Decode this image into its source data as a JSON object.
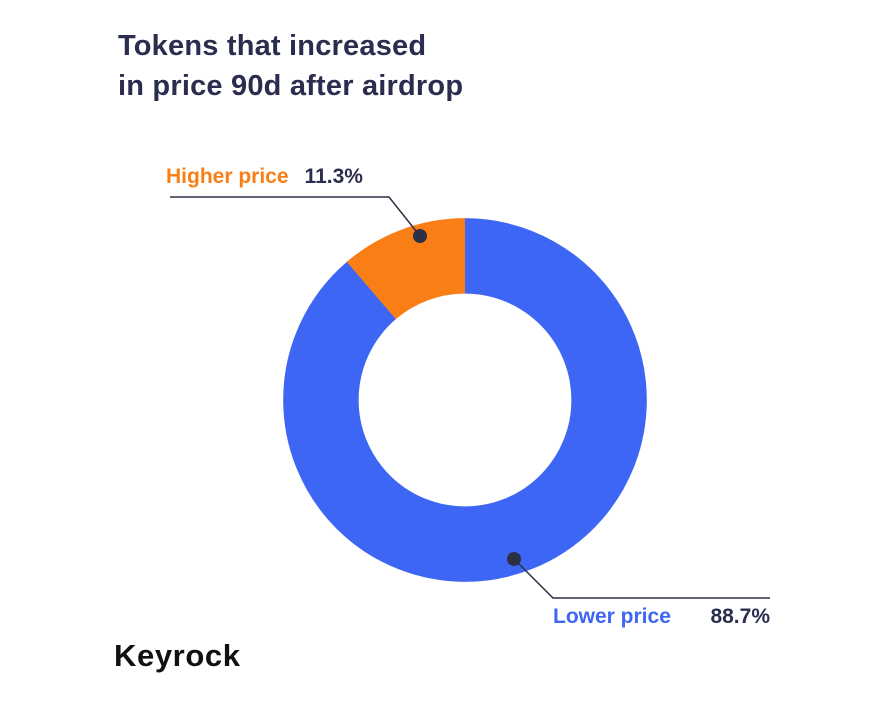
{
  "title": {
    "line1": "Tokens that increased",
    "line2": "in price 90d after airdrop"
  },
  "logo": {
    "text": "Keyrock"
  },
  "colors": {
    "accent_orange": "#F97E16",
    "accent_blue": "#3E66F5",
    "text_dark": "#2B2D4F",
    "line_dark": "#2D2F45",
    "background": "#FFFFFF"
  },
  "chart_data": {
    "type": "pie",
    "subtype": "donut",
    "title": "Tokens that increased in price 90d after airdrop",
    "unit": "percent",
    "legend_position": "callout-labels",
    "donut_hole_ratio": 0.585,
    "orientation_note": "first slice (Higher price) ends at 12 o'clock; slices proceed clockwise",
    "slices": [
      {
        "label": "Higher price",
        "value": 11.3,
        "display": "11.3%",
        "color": "#F97E16"
      },
      {
        "label": "Lower price",
        "value": 88.7,
        "display": "88.7%",
        "color": "#3E66F5"
      }
    ]
  }
}
